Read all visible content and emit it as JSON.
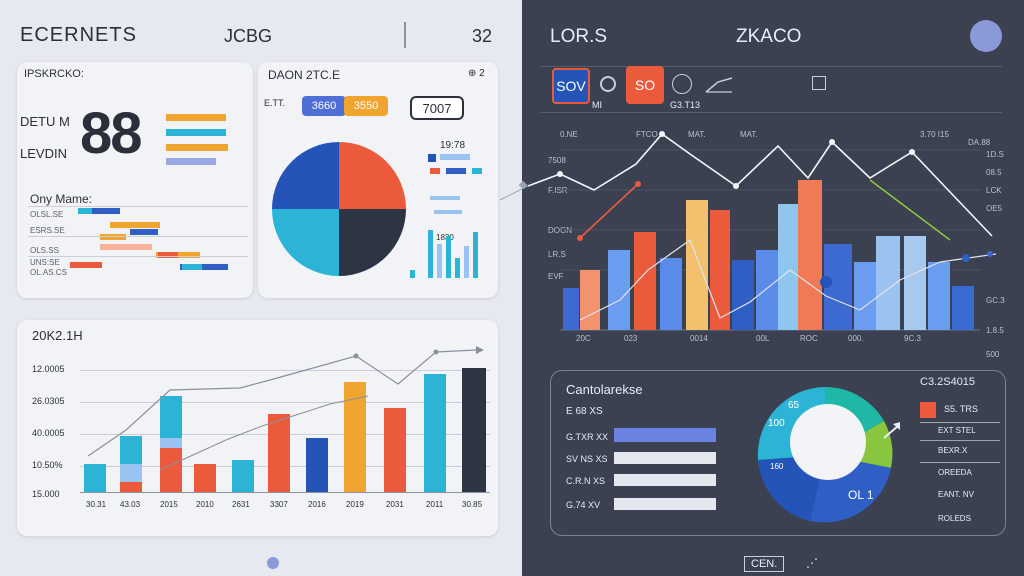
{
  "colors": {
    "blue": "#2f5fc4",
    "orange": "#f1a531",
    "red": "#ec5a3c",
    "cyan": "#2bb4d6",
    "navy": "#2c3e73",
    "dark": "#3b4150",
    "periwinkle": "#7b8fe0",
    "green": "#8ac540",
    "teal": "#1fb8a6",
    "light_blue": "#9bc3f0"
  },
  "header": {
    "title": "ECERNETS",
    "mid_label": "JCBG",
    "right_num": "32",
    "dark_title": "LOR.S",
    "dark_mid": "ZKACO"
  },
  "kpi_card": {
    "title": "IPSKRCKO:",
    "big_value": "88",
    "label_1": "DETU M",
    "label_2": "LEVDIN",
    "sub_title": "Ony Mame:",
    "rows": [
      "OLSL.SE",
      "ESRS.SE",
      "OLS.SS",
      "UNS:SE",
      "OL.AS.CS"
    ]
  },
  "pie_card": {
    "title": "DAON 2TC.E",
    "corner": "⊕ 2",
    "legend_label": "E.TT.",
    "pill_1": "3660",
    "pill_2": "3550",
    "value_box": "7007",
    "side_title": "19:78",
    "axis_tick": "1830"
  },
  "bottom_card": {
    "title": "20K2.1H",
    "y_ticks": [
      "12.0005",
      "26.0305",
      "40.0005",
      "10.50%",
      "15.000"
    ],
    "x_ticks": [
      "30.31",
      "43.03",
      "2015",
      "2010",
      "2631",
      "3307",
      "2016",
      "2019",
      "2031",
      "2011",
      "30.85"
    ]
  },
  "dark_header": {
    "pill_1": "SOV",
    "pill_2": "SO",
    "small": "MI",
    "small_2": "G3.T13"
  },
  "combo_chart": {
    "top_labels": [
      "0.NE",
      "FTCO",
      "MAT.",
      "MAT.",
      "3.70 I15",
      "DA.88"
    ],
    "left_ticks": [
      "7508",
      "F.ISR",
      "DOGN",
      "LR.S",
      "EVF"
    ],
    "right_ticks": [
      "1D.S",
      "08.5",
      "LCK",
      "OE5",
      "GC.3",
      "1.8.5",
      "500"
    ],
    "x_ticks": [
      "20C",
      "023",
      "0014",
      "00L",
      "ROC",
      "000.",
      "9C.3"
    ]
  },
  "donut_card": {
    "title": "Cantolarekse",
    "corner": "C3.2S4015",
    "center_label": "OL 1",
    "seg_1": "65",
    "seg_2": "100",
    "seg_3": "160",
    "left_labels": [
      "E 68 XS",
      "G.TXR XX",
      "SV NS XS",
      "C.R.N XS",
      "G.74 XV"
    ],
    "right_labels": [
      "S5. TRS",
      "EXT STEL",
      "BEXR.X",
      "OREEDA",
      "EANT. NV",
      "ROLEDS"
    ],
    "footer": "CEN."
  }
}
